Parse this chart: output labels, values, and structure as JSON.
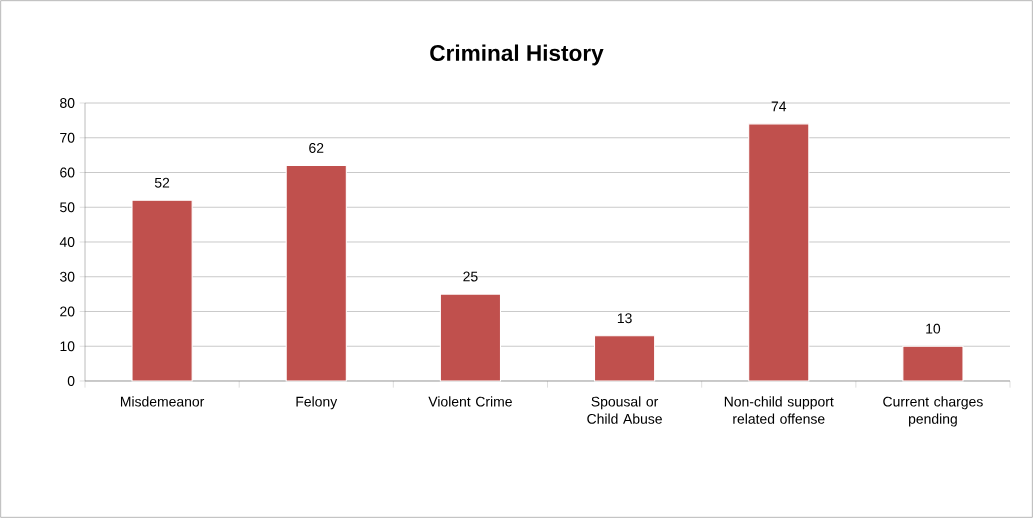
{
  "chart_data": {
    "type": "bar",
    "title": "Criminal History",
    "categories": [
      "Misdemeanor",
      "Felony",
      "Violent Crime",
      "Spousal or Child Abuse",
      "Non-child support related offense",
      "Current charges pending"
    ],
    "values": [
      52,
      62,
      25,
      13,
      74,
      10
    ],
    "color": "#c0504d",
    "ylim": [
      0,
      80
    ],
    "yticks": [
      0,
      10,
      20,
      30,
      40,
      50,
      60,
      70,
      80
    ],
    "grid": "y",
    "data_labels": true
  }
}
